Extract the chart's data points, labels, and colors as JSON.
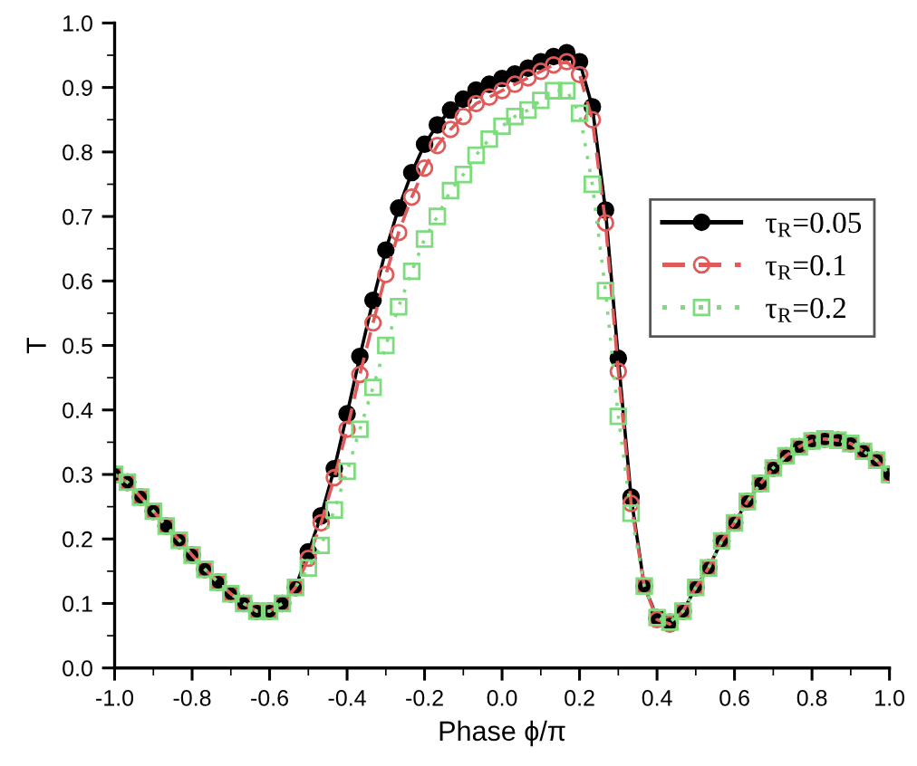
{
  "chart_data": {
    "type": "line",
    "xlabel": "Phase ϕ/π",
    "ylabel": "T",
    "x": [
      -1.0,
      -0.967,
      -0.933,
      -0.9,
      -0.867,
      -0.833,
      -0.8,
      -0.767,
      -0.733,
      -0.7,
      -0.667,
      -0.633,
      -0.6,
      -0.567,
      -0.533,
      -0.5,
      -0.467,
      -0.433,
      -0.4,
      -0.367,
      -0.333,
      -0.3,
      -0.267,
      -0.233,
      -0.2,
      -0.167,
      -0.133,
      -0.1,
      -0.067,
      -0.033,
      0.0,
      0.033,
      0.067,
      0.1,
      0.133,
      0.167,
      0.2,
      0.233,
      0.267,
      0.3,
      0.333,
      0.367,
      0.4,
      0.433,
      0.467,
      0.5,
      0.533,
      0.567,
      0.6,
      0.633,
      0.667,
      0.7,
      0.733,
      0.767,
      0.8,
      0.833,
      0.867,
      0.9,
      0.933,
      0.967,
      1.0
    ],
    "series": [
      {
        "name": "τ$_{R}$=0.05",
        "color": "#000000",
        "marker": "circle",
        "line_style": "solid",
        "values": [
          0.3,
          0.288,
          0.265,
          0.243,
          0.22,
          0.198,
          0.175,
          0.153,
          0.133,
          0.115,
          0.1,
          0.088,
          0.088,
          0.1,
          0.125,
          0.18,
          0.236,
          0.309,
          0.394,
          0.483,
          0.57,
          0.648,
          0.713,
          0.768,
          0.812,
          0.842,
          0.865,
          0.882,
          0.896,
          0.905,
          0.914,
          0.921,
          0.93,
          0.94,
          0.948,
          0.954,
          0.94,
          0.87,
          0.71,
          0.48,
          0.265,
          0.127,
          0.078,
          0.071,
          0.088,
          0.125,
          0.155,
          0.197,
          0.225,
          0.258,
          0.286,
          0.31,
          0.329,
          0.343,
          0.352,
          0.355,
          0.353,
          0.348,
          0.336,
          0.322,
          0.3
        ]
      },
      {
        "name": "τ$_{R}$=0.1",
        "color": "#e05a5a",
        "marker": "circle",
        "line_style": "dashed",
        "values": [
          0.3,
          0.288,
          0.265,
          0.243,
          0.22,
          0.198,
          0.175,
          0.153,
          0.133,
          0.115,
          0.1,
          0.088,
          0.088,
          0.1,
          0.125,
          0.17,
          0.225,
          0.295,
          0.37,
          0.455,
          0.535,
          0.61,
          0.675,
          0.73,
          0.775,
          0.81,
          0.835,
          0.855,
          0.875,
          0.885,
          0.895,
          0.905,
          0.915,
          0.925,
          0.935,
          0.94,
          0.92,
          0.85,
          0.69,
          0.46,
          0.255,
          0.127,
          0.075,
          0.068,
          0.088,
          0.125,
          0.155,
          0.197,
          0.225,
          0.258,
          0.286,
          0.31,
          0.329,
          0.343,
          0.352,
          0.355,
          0.353,
          0.348,
          0.336,
          0.322,
          0.3
        ]
      },
      {
        "name": "τ$_{R}$=0.2",
        "color": "#7ddc7d",
        "marker": "square",
        "line_style": "dotted",
        "values": [
          0.3,
          0.288,
          0.265,
          0.243,
          0.22,
          0.198,
          0.175,
          0.153,
          0.133,
          0.115,
          0.1,
          0.088,
          0.088,
          0.1,
          0.125,
          0.155,
          0.19,
          0.245,
          0.305,
          0.37,
          0.435,
          0.5,
          0.56,
          0.615,
          0.665,
          0.7,
          0.74,
          0.765,
          0.795,
          0.82,
          0.84,
          0.855,
          0.865,
          0.88,
          0.895,
          0.895,
          0.86,
          0.75,
          0.585,
          0.39,
          0.24,
          0.127,
          0.078,
          0.071,
          0.088,
          0.125,
          0.155,
          0.197,
          0.225,
          0.258,
          0.286,
          0.31,
          0.329,
          0.343,
          0.352,
          0.355,
          0.353,
          0.348,
          0.336,
          0.322,
          0.3
        ]
      }
    ],
    "xlim": [
      -1.0,
      1.0
    ],
    "xticks": [
      {
        "value": -1.0,
        "label": "-1.0"
      },
      {
        "value": -0.8,
        "label": "-0.8"
      },
      {
        "value": -0.6,
        "label": "-0.6"
      },
      {
        "value": -0.4,
        "label": "-0.4"
      },
      {
        "value": -0.2,
        "label": "-0.2"
      },
      {
        "value": 0.0,
        "label": "0.0"
      },
      {
        "value": 0.2,
        "label": "0.2"
      },
      {
        "value": 0.4,
        "label": "0.4"
      },
      {
        "value": 0.6,
        "label": "0.6"
      },
      {
        "value": 0.8,
        "label": "0.8"
      },
      {
        "value": 1.0,
        "label": "1.0"
      }
    ],
    "ylim": [
      0.0,
      1.0
    ],
    "yticks": [
      {
        "value": 0.0,
        "label": "0.0"
      },
      0.1,
      0.2,
      0.3,
      0.4,
      0.5,
      0.6,
      0.7,
      0.8,
      0.9,
      {
        "value": 1.0,
        "label": "1.0"
      }
    ],
    "legend": "right",
    "grid": false
  }
}
